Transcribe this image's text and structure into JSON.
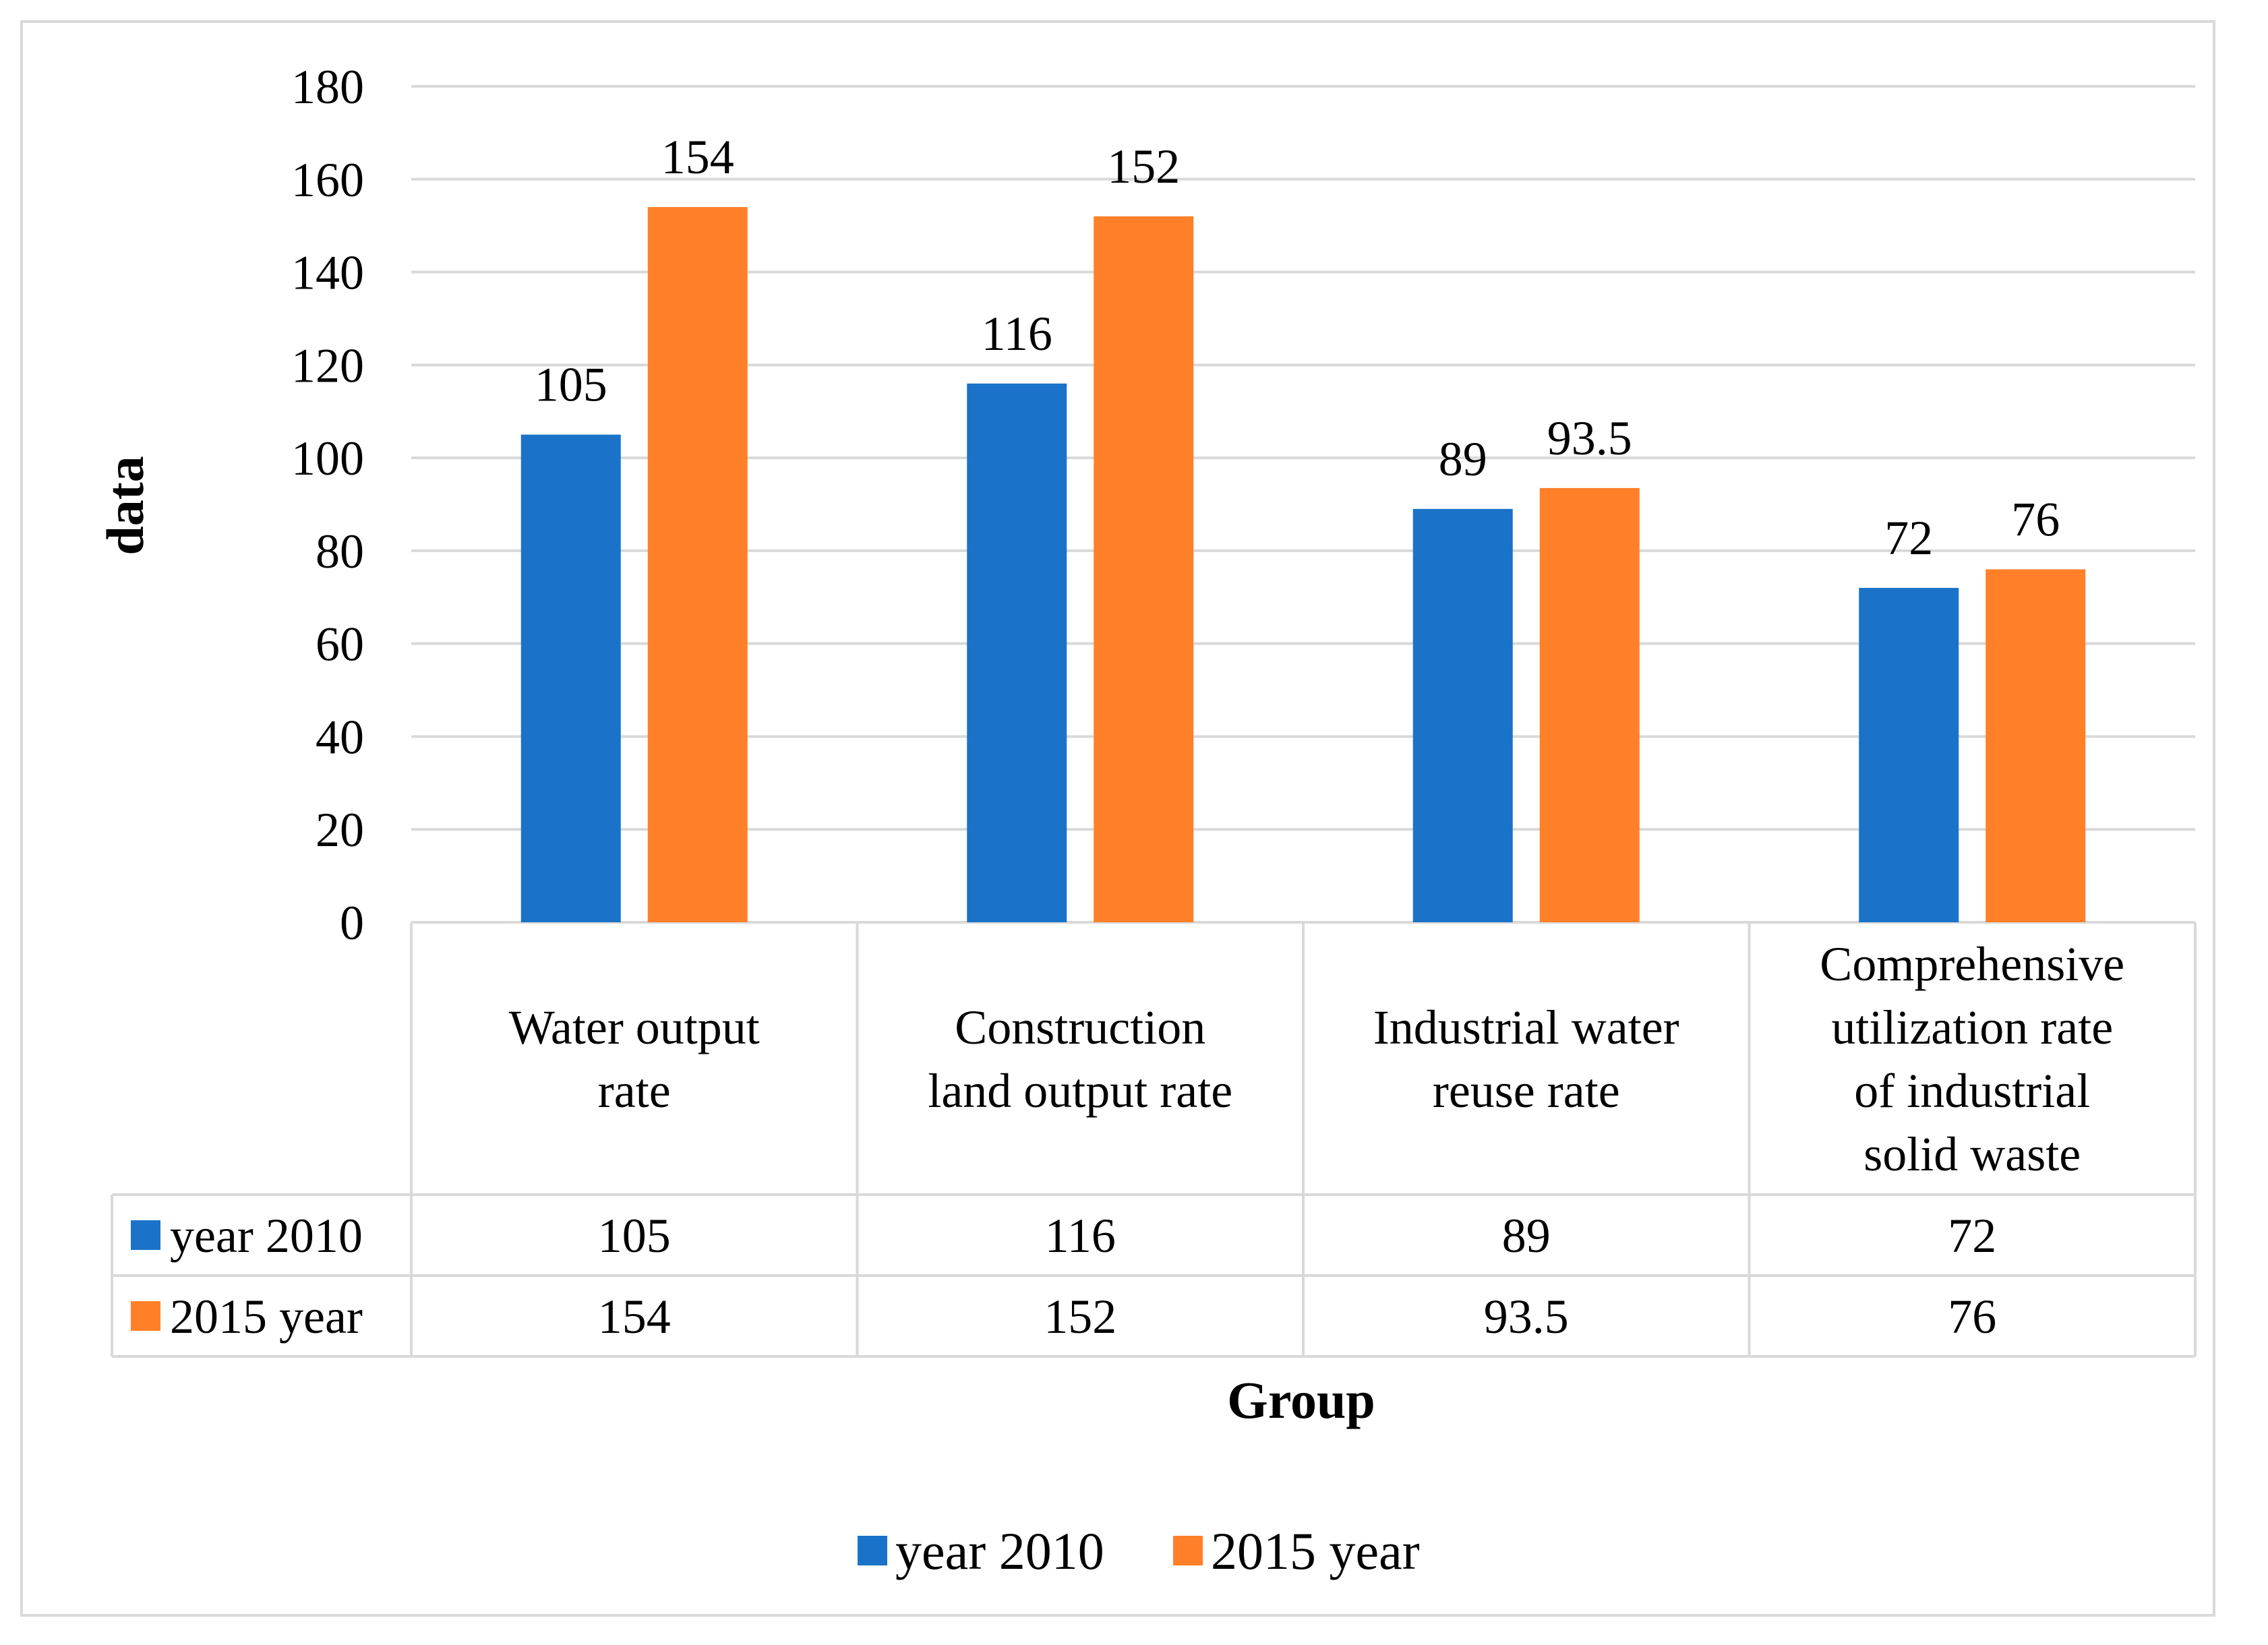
{
  "chart_data": {
    "type": "bar",
    "title": "",
    "xlabel": "Group",
    "ylabel": "data",
    "ylim": [
      0,
      180
    ],
    "yticks": [
      0,
      20,
      40,
      60,
      80,
      100,
      120,
      140,
      160,
      180
    ],
    "grid": true,
    "legend_position": "bottom",
    "data_table": true,
    "categories": [
      [
        "Water output",
        "rate"
      ],
      [
        "Construction",
        "land output rate"
      ],
      [
        "Industrial water",
        "reuse rate"
      ],
      [
        "Comprehensive",
        "utilization rate",
        "of industrial",
        "solid waste"
      ]
    ],
    "series": [
      {
        "name": "year 2010",
        "color": "#1a73c8",
        "values": [
          105,
          116,
          89,
          72
        ],
        "labels": [
          "105",
          "116",
          "89",
          "72"
        ]
      },
      {
        "name": "2015 year",
        "color": "#ff8028",
        "values": [
          154,
          152,
          93.5,
          76
        ],
        "labels": [
          "154",
          "152",
          "93.5",
          "76"
        ]
      }
    ],
    "colors": {
      "grid": "#d9d9d9",
      "table_border": "#d9d9d9"
    }
  }
}
